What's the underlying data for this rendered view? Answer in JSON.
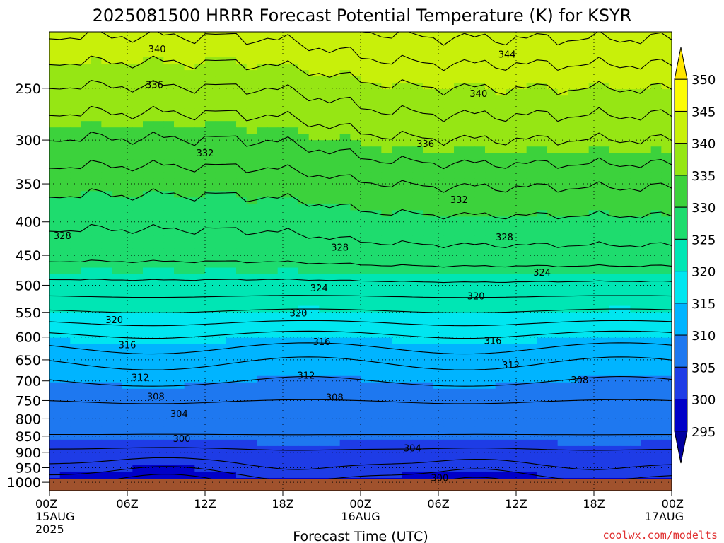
{
  "chart_data": {
    "type": "heatmap",
    "title": "2025081500 HRRR Forecast Potential Temperature (K) for KSYR",
    "xlabel": "Forecast Time (UTC)",
    "ylabel": "",
    "credit": "coolwx.com/modelts",
    "y_scale": "log-pressure",
    "ylim": [
      1030,
      205
    ],
    "xlim": [
      0,
      48
    ],
    "y_ticks": [
      "250",
      "300",
      "350",
      "400",
      "450",
      "500",
      "550",
      "600",
      "650",
      "700",
      "750",
      "800",
      "850",
      "900",
      "950",
      "1000"
    ],
    "x_ticks": [
      {
        "hour": 0,
        "label": "00Z",
        "date": "15AUG",
        "year": "2025"
      },
      {
        "hour": 6,
        "label": "06Z"
      },
      {
        "hour": 12,
        "label": "12Z"
      },
      {
        "hour": 18,
        "label": "18Z"
      },
      {
        "hour": 24,
        "label": "00Z",
        "date": "16AUG"
      },
      {
        "hour": 30,
        "label": "06Z"
      },
      {
        "hour": 36,
        "label": "12Z"
      },
      {
        "hour": 42,
        "label": "18Z"
      },
      {
        "hour": 48,
        "label": "00Z",
        "date": "17AUG"
      }
    ],
    "grid": true,
    "colorbar": {
      "levels": [
        350,
        345,
        340,
        335,
        330,
        325,
        320,
        315,
        310,
        305,
        300,
        295
      ],
      "colors": [
        "#ffe600",
        "#fcfc04",
        "#c8f00a",
        "#96e614",
        "#3cd23c",
        "#1edc6e",
        "#00e6b4",
        "#00e6f0",
        "#00b4ff",
        "#1e78f0",
        "#1e3ce6",
        "#0000c8",
        "#0000a0"
      ]
    },
    "contour_labels": [
      {
        "text": "340",
        "x": 8.3,
        "p": 218
      },
      {
        "text": "344",
        "x": 35.3,
        "p": 222
      },
      {
        "text": "336",
        "x": 8.1,
        "p": 247
      },
      {
        "text": "340",
        "x": 33.1,
        "p": 255
      },
      {
        "text": "332",
        "x": 12.0,
        "p": 314
      },
      {
        "text": "336",
        "x": 29.0,
        "p": 304
      },
      {
        "text": "332",
        "x": 31.6,
        "p": 370
      },
      {
        "text": "328",
        "x": 1.0,
        "p": 420
      },
      {
        "text": "328",
        "x": 22.4,
        "p": 438
      },
      {
        "text": "328",
        "x": 35.1,
        "p": 422
      },
      {
        "text": "324",
        "x": 38.0,
        "p": 478
      },
      {
        "text": "324",
        "x": 20.8,
        "p": 505
      },
      {
        "text": "320",
        "x": 32.9,
        "p": 520
      },
      {
        "text": "320",
        "x": 5.0,
        "p": 565
      },
      {
        "text": "320",
        "x": 19.2,
        "p": 552
      },
      {
        "text": "316",
        "x": 6.0,
        "p": 617
      },
      {
        "text": "316",
        "x": 21.0,
        "p": 610
      },
      {
        "text": "316",
        "x": 34.2,
        "p": 608
      },
      {
        "text": "312",
        "x": 35.6,
        "p": 662
      },
      {
        "text": "312",
        "x": 7.0,
        "p": 692
      },
      {
        "text": "312",
        "x": 19.8,
        "p": 687
      },
      {
        "text": "308",
        "x": 40.9,
        "p": 698
      },
      {
        "text": "308",
        "x": 8.2,
        "p": 740
      },
      {
        "text": "308",
        "x": 22.0,
        "p": 742
      },
      {
        "text": "304",
        "x": 10.0,
        "p": 786
      },
      {
        "text": "300",
        "x": 10.2,
        "p": 858
      },
      {
        "text": "304",
        "x": 28.0,
        "p": 887
      },
      {
        "text": "300",
        "x": 30.1,
        "p": 985
      }
    ]
  }
}
